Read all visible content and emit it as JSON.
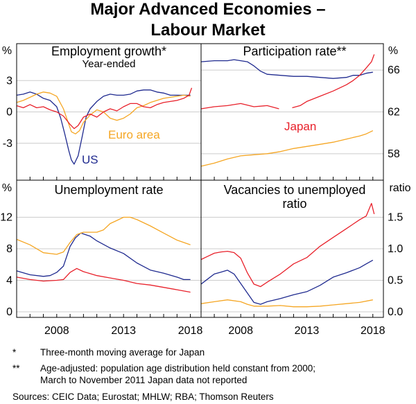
{
  "title_line1": "Major Advanced Economies –",
  "title_line2": "Labour Market",
  "colors": {
    "us": "#1f2a8f",
    "euro_area": "#f5a623",
    "japan": "#e8202a"
  },
  "footnotes": {
    "star_mark": "*",
    "star_text": "Three-month moving average for Japan",
    "dstar_mark": "**",
    "dstar_line1": "Age-adjusted: population age distribution held constant from 2000;",
    "dstar_line2": "March to November 2011 Japan data not reported",
    "sources": "Sources: CEIC Data; Eurostat; MHLW; RBA; Thomson Reuters"
  },
  "x_tick_labels": [
    "2008",
    "2013",
    "2018"
  ],
  "chart_data": [
    {
      "type": "line",
      "title": "Employment growth*",
      "subtitle": "Year-ended",
      "unit_left": "%",
      "unit_right": "",
      "ylim": [
        -6,
        6
      ],
      "yticks": [
        3,
        0,
        -3
      ],
      "ytick_labels": [
        "3",
        "0",
        "-3"
      ],
      "ytick_side": "left",
      "xlim": [
        2005,
        2018.8
      ],
      "annotations": [
        {
          "text": "Euro area",
          "series": "euro_area"
        },
        {
          "text": "US",
          "series": "us"
        }
      ],
      "series": [
        {
          "name": "US",
          "key": "us",
          "x": [
            2005,
            2005.5,
            2006,
            2006.5,
            2007,
            2007.5,
            2008,
            2008.3,
            2008.6,
            2008.9,
            2009.1,
            2009.3,
            2009.6,
            2009.9,
            2010.2,
            2010.5,
            2011,
            2011.5,
            2012,
            2012.5,
            2013,
            2013.5,
            2014,
            2014.5,
            2015,
            2015.5,
            2016,
            2016.5,
            2017,
            2017.5,
            2018
          ],
          "y": [
            1.6,
            1.7,
            1.9,
            1.7,
            1.3,
            1.1,
            0.5,
            -0.6,
            -2.1,
            -3.7,
            -4.6,
            -5.0,
            -4.2,
            -2.4,
            -0.5,
            0.3,
            1.0,
            1.5,
            1.7,
            1.6,
            1.6,
            1.7,
            2.0,
            2.1,
            2.1,
            1.9,
            1.8,
            1.6,
            1.6,
            1.6,
            1.6
          ]
        },
        {
          "name": "Euro area",
          "key": "euro_area",
          "x": [
            2005,
            2005.5,
            2006,
            2006.5,
            2007,
            2007.5,
            2008,
            2008.5,
            2008.8,
            2009.1,
            2009.4,
            2009.7,
            2010,
            2010.5,
            2011,
            2011.5,
            2012,
            2012.5,
            2013,
            2013.5,
            2014,
            2014.5,
            2015,
            2015.5,
            2016,
            2016.5,
            2017,
            2017.5,
            2018
          ],
          "y": [
            0.9,
            1.1,
            1.4,
            1.7,
            1.9,
            1.8,
            1.5,
            0.3,
            -0.8,
            -1.9,
            -2.1,
            -1.8,
            -1.0,
            -0.3,
            0.2,
            0.0,
            -0.6,
            -0.8,
            -0.6,
            -0.2,
            0.4,
            0.6,
            0.9,
            1.1,
            1.3,
            1.4,
            1.5,
            1.6,
            1.5
          ]
        },
        {
          "name": "Japan",
          "key": "japan",
          "x": [
            2005,
            2005.5,
            2006,
            2006.5,
            2007,
            2007.5,
            2008,
            2008.5,
            2009,
            2009.3,
            2009.6,
            2010,
            2010.5,
            2011,
            2011.5,
            2012,
            2012.5,
            2013,
            2013.5,
            2014,
            2014.5,
            2015,
            2015.5,
            2016,
            2016.5,
            2017,
            2017.5,
            2017.9,
            2018.1
          ],
          "y": [
            0.6,
            0.4,
            0.7,
            0.4,
            0.5,
            0.2,
            0.0,
            -0.4,
            -1.2,
            -1.6,
            -1.3,
            -0.5,
            -0.2,
            -0.5,
            0.0,
            0.3,
            0.1,
            0.5,
            0.8,
            0.8,
            0.5,
            0.4,
            0.7,
            0.9,
            1.0,
            1.1,
            1.3,
            1.6,
            2.3
          ]
        }
      ]
    },
    {
      "type": "line",
      "title": "Participation rate**",
      "subtitle": "",
      "unit_left": "",
      "unit_right": "%",
      "ylim": [
        56,
        68
      ],
      "yticks": [
        66,
        62,
        58
      ],
      "ytick_labels": [
        "66",
        "62",
        "58"
      ],
      "ytick_side": "right",
      "xlim": [
        2005,
        2018.8
      ],
      "annotations": [
        {
          "text": "Japan",
          "series": "japan"
        }
      ],
      "series": [
        {
          "name": "US",
          "key": "us",
          "x": [
            2005,
            2006,
            2007,
            2007.5,
            2008,
            2008.5,
            2009,
            2009.5,
            2010,
            2011,
            2012,
            2013,
            2014,
            2015,
            2016,
            2016.5,
            2017,
            2017.5,
            2018
          ],
          "y": [
            66.8,
            66.9,
            66.9,
            67.0,
            66.9,
            66.8,
            66.4,
            65.9,
            65.6,
            65.5,
            65.4,
            65.4,
            65.3,
            65.2,
            65.3,
            65.5,
            65.5,
            65.7,
            65.8
          ]
        },
        {
          "name": "Euro area",
          "key": "euro_area",
          "x": [
            2005,
            2006,
            2007,
            2008,
            2009,
            2010,
            2011,
            2012,
            2013,
            2014,
            2015,
            2016,
            2017,
            2017.5,
            2018
          ],
          "y": [
            56.8,
            57.1,
            57.5,
            57.8,
            57.9,
            58.0,
            58.2,
            58.5,
            58.7,
            58.9,
            59.1,
            59.4,
            59.7,
            59.9,
            60.2
          ]
        },
        {
          "name": "Japan",
          "key": "japan",
          "x": [
            2005,
            2006,
            2007,
            2008,
            2009,
            2010,
            2010.9,
            null,
            2011.9,
            2012.5,
            2013,
            2014,
            2015,
            2016,
            2016.5,
            2017,
            2017.5,
            2017.9,
            2018.1
          ],
          "y": [
            62.3,
            62.5,
            62.6,
            62.8,
            62.5,
            62.6,
            62.3,
            null,
            62.4,
            62.6,
            63.0,
            63.5,
            64.0,
            64.6,
            65.0,
            65.5,
            66.2,
            66.8,
            67.5
          ]
        }
      ]
    },
    {
      "type": "line",
      "title": "Unemployment rate",
      "subtitle": "",
      "unit_left": "%",
      "unit_right": "",
      "ylim": [
        0,
        16
      ],
      "yticks": [
        12,
        8,
        4,
        0
      ],
      "ytick_labels": [
        "12",
        "8",
        "4",
        "0"
      ],
      "ytick_side": "left",
      "xlim": [
        2005,
        2018.8
      ],
      "annotations": [],
      "series": [
        {
          "name": "US",
          "key": "us",
          "x": [
            2005,
            2006,
            2007,
            2007.5,
            2008,
            2008.5,
            2009,
            2009.4,
            2009.8,
            2010.5,
            2011,
            2012,
            2013,
            2014,
            2015,
            2016,
            2017,
            2017.5,
            2018
          ],
          "y": [
            5.2,
            4.7,
            4.5,
            4.6,
            5.0,
            5.8,
            8.3,
            9.4,
            10.0,
            9.6,
            9.0,
            8.1,
            7.4,
            6.2,
            5.3,
            4.9,
            4.4,
            4.1,
            4.1
          ]
        },
        {
          "name": "Euro area",
          "key": "euro_area",
          "x": [
            2005,
            2006,
            2007,
            2008,
            2008.5,
            2009,
            2009.5,
            2010,
            2011,
            2011.5,
            2012,
            2012.5,
            2013,
            2013.5,
            2014,
            2015,
            2016,
            2017,
            2018
          ],
          "y": [
            9.2,
            8.5,
            7.5,
            7.3,
            7.6,
            8.8,
            9.8,
            10.1,
            10.1,
            10.4,
            11.2,
            11.6,
            12.0,
            12.0,
            11.7,
            10.9,
            10.0,
            9.1,
            8.5
          ]
        },
        {
          "name": "Japan",
          "key": "japan",
          "x": [
            2005,
            2006,
            2007,
            2008,
            2008.5,
            2009,
            2009.5,
            2010,
            2011,
            2012,
            2013,
            2014,
            2015,
            2016,
            2017,
            2018
          ],
          "y": [
            4.4,
            4.1,
            3.9,
            4.0,
            4.1,
            5.0,
            5.5,
            5.1,
            4.6,
            4.3,
            4.0,
            3.6,
            3.4,
            3.1,
            2.8,
            2.5
          ]
        }
      ]
    },
    {
      "type": "line",
      "title": "Vacancies to unemployed",
      "subtitle": "ratio",
      "unit_left": "",
      "unit_right": "ratio",
      "ylim": [
        0,
        2.0
      ],
      "yticks": [
        1.5,
        1.0,
        0.5,
        0.0
      ],
      "ytick_labels": [
        "1.5",
        "1.0",
        "0.5",
        "0.0"
      ],
      "ytick_side": "right",
      "xlim": [
        2005,
        2018.8
      ],
      "annotations": [],
      "series": [
        {
          "name": "US",
          "key": "us",
          "x": [
            2005,
            2005.5,
            2006,
            2006.5,
            2007,
            2007.5,
            2008,
            2008.5,
            2009,
            2009.5,
            2010,
            2011,
            2012,
            2013,
            2014,
            2015,
            2016,
            2017,
            2017.5,
            2018
          ],
          "y": [
            0.44,
            0.52,
            0.6,
            0.63,
            0.66,
            0.6,
            0.45,
            0.3,
            0.15,
            0.12,
            0.16,
            0.21,
            0.27,
            0.32,
            0.42,
            0.55,
            0.62,
            0.7,
            0.76,
            0.82
          ]
        },
        {
          "name": "Euro area",
          "key": "euro_area",
          "x": [
            2005,
            2006,
            2007,
            2008,
            2008.5,
            2009,
            2010,
            2011,
            2012,
            2013,
            2014,
            2015,
            2016,
            2017,
            2018
          ],
          "y": [
            0.13,
            0.16,
            0.19,
            0.16,
            0.12,
            0.09,
            0.09,
            0.1,
            0.08,
            0.08,
            0.09,
            0.11,
            0.13,
            0.15,
            0.19
          ]
        },
        {
          "name": "Japan",
          "key": "japan",
          "x": [
            2005,
            2005.5,
            2006,
            2006.5,
            2007,
            2007.5,
            2008,
            2008.5,
            2009,
            2009.5,
            2010,
            2011,
            2012,
            2013,
            2014,
            2015,
            2016,
            2017,
            2017.5,
            2017.9,
            2018.1
          ],
          "y": [
            0.83,
            0.88,
            0.93,
            0.95,
            0.96,
            0.94,
            0.85,
            0.62,
            0.44,
            0.4,
            0.47,
            0.6,
            0.76,
            0.86,
            1.04,
            1.18,
            1.32,
            1.46,
            1.52,
            1.72,
            1.55
          ]
        }
      ]
    }
  ]
}
